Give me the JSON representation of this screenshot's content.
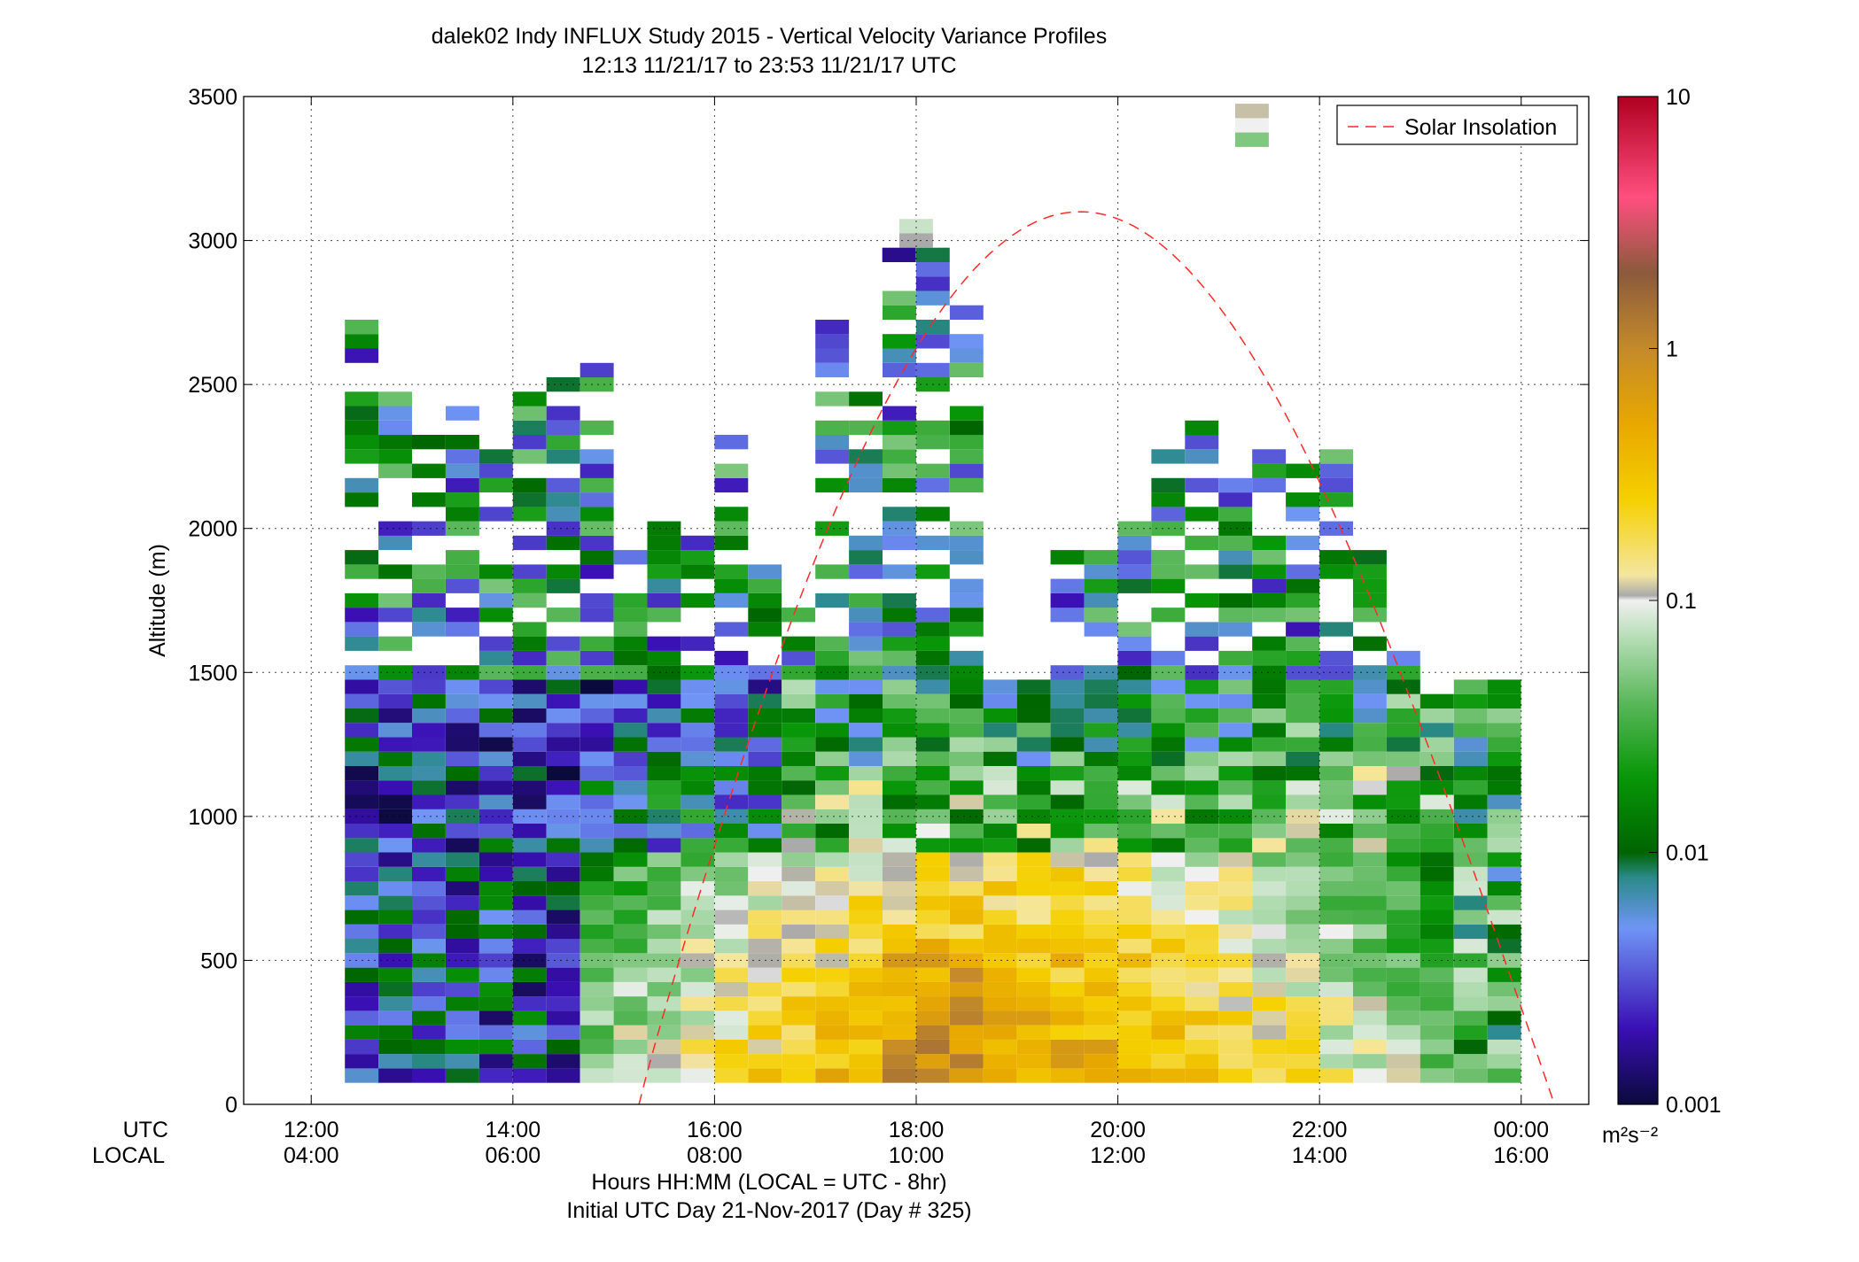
{
  "title_line1": "dalek02 Indy INFLUX Study 2015 - Vertical Velocity Variance Profiles",
  "title_line2": "12:13 11/21/17 to 23:53 11/21/17  UTC",
  "xlabel_line1": "Hours HH:MM  (LOCAL = UTC - 8hr)",
  "xlabel_line2": "Initial UTC Day 21-Nov-2017 (Day # 325)",
  "ylabel": "Altitude (m)",
  "row_label_utc": "UTC",
  "row_label_local": "LOCAL",
  "colorbar_unit": "m²s⁻²",
  "legend_label": "Solar Insolation",
  "colors": {
    "solar_curve": "#ff2a2a",
    "colormap": [
      "#0a0a3c",
      "#3a0fb4",
      "#6f95f5",
      "#2a8a8a",
      "#006400",
      "#089708",
      "#5cb85c",
      "#b5ddb5",
      "#f0f0f0",
      "#aaaaaa",
      "#f5e6a0",
      "#f5d000",
      "#e8a800",
      "#c48a2a",
      "#8b5a3c",
      "#ff4f7f",
      "#b00020"
    ]
  },
  "chart_data": {
    "type": "heatmap",
    "x_ticks": [
      12,
      14,
      16,
      18,
      20,
      22,
      24
    ],
    "xtick_labels_utc": [
      "12:00",
      "14:00",
      "16:00",
      "18:00",
      "20:00",
      "22:00",
      "00:00"
    ],
    "xtick_labels_local": [
      "04:00",
      "06:00",
      "08:00",
      "10:00",
      "12:00",
      "14:00",
      "16:00"
    ],
    "xlim": [
      11.33,
      24.67
    ],
    "ylim": [
      0,
      3500
    ],
    "y_ticks": [
      0,
      500,
      1000,
      1500,
      2000,
      2500,
      3000,
      3500
    ],
    "ytick_labels": [
      "0",
      "500",
      "1000",
      "1500",
      "2000",
      "2500",
      "3000",
      "3500"
    ],
    "colorbar": {
      "scale": "log",
      "range": [
        0.001,
        10
      ],
      "ticks": [
        0.001,
        0.01,
        0.1,
        1,
        10
      ],
      "tick_labels": [
        "0.001",
        "0.01",
        "0.1",
        "1",
        "10"
      ]
    },
    "grid": true,
    "legend_position": "top-right",
    "series": [
      {
        "name": "Solar Insolation",
        "style": "dashed",
        "x_start": 15.25,
        "x_peak": 19.8,
        "x_end": 24.33,
        "y_peak": 3100
      }
    ]
  }
}
